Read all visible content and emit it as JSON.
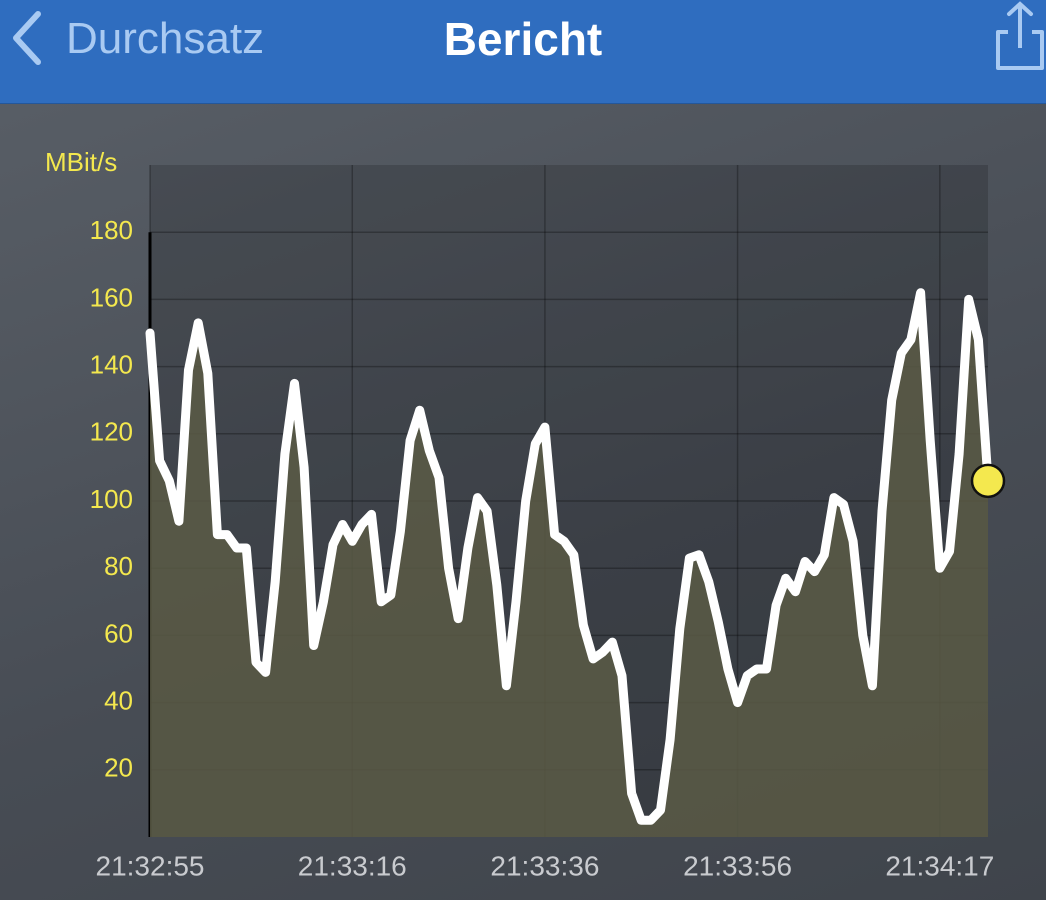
{
  "header": {
    "back_label": "Durchsatz",
    "title": "Bericht"
  },
  "chart_data": {
    "type": "line",
    "y_label": "MBit/s",
    "x": [
      77575,
      77576,
      77577,
      77578,
      77579,
      77580,
      77581,
      77582,
      77583,
      77584,
      77585,
      77586,
      77587,
      77588,
      77589,
      77590,
      77591,
      77592,
      77593,
      77594,
      77595,
      77596,
      77597,
      77598,
      77599,
      77600,
      77601,
      77602,
      77603,
      77604,
      77605,
      77606,
      77607,
      77608,
      77609,
      77610,
      77611,
      77612,
      77613,
      77614,
      77615,
      77616,
      77617,
      77618,
      77619,
      77620,
      77621,
      77622,
      77623,
      77624,
      77625,
      77626,
      77627,
      77628,
      77629,
      77630,
      77631,
      77632,
      77633,
      77634,
      77635,
      77636,
      77637,
      77638,
      77639,
      77640,
      77641,
      77642,
      77643,
      77644,
      77645,
      77646,
      77647,
      77648,
      77649,
      77650,
      77651,
      77652,
      77653,
      77654,
      77655,
      77656,
      77657,
      77658,
      77659,
      77660,
      77661,
      77662
    ],
    "values": [
      150,
      112,
      106,
      94,
      139,
      153,
      138,
      90,
      90,
      86,
      86,
      52,
      49,
      76,
      114,
      135,
      110,
      57,
      70,
      87,
      93,
      88,
      93,
      96,
      70,
      72,
      91,
      118,
      127,
      115,
      107,
      80,
      65,
      86,
      101,
      97,
      75,
      45,
      70,
      100,
      117,
      122,
      90,
      88,
      84,
      63,
      53,
      55,
      58,
      48,
      13,
      5,
      5,
      8,
      29,
      62,
      83,
      84,
      76,
      64,
      50,
      40,
      48,
      50,
      50,
      69,
      77,
      73,
      82,
      79,
      84,
      101,
      99,
      88,
      60,
      45,
      97,
      130,
      144,
      148,
      162,
      118,
      80,
      85,
      114,
      160,
      148,
      106
    ],
    "color": "#ffffff",
    "fill_color": "#5b5b45",
    "marker_color": "#f4e84e",
    "xlim": [
      77575,
      77662
    ],
    "xticks": [
      {
        "value": 77575,
        "label": "21:32:55"
      },
      {
        "value": 77596,
        "label": "21:33:16"
      },
      {
        "value": 77616,
        "label": "21:33:36"
      },
      {
        "value": 77636,
        "label": "21:33:56"
      },
      {
        "value": 77657,
        "label": "21:34:17"
      }
    ],
    "ylim": [
      0,
      200
    ],
    "yticks": [
      20,
      40,
      60,
      80,
      100,
      120,
      140,
      160,
      180
    ],
    "grid": true
  }
}
